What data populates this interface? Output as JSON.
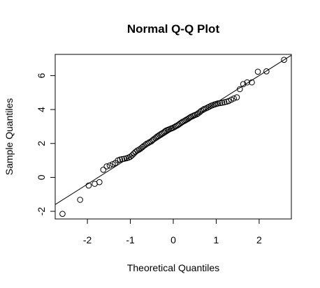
{
  "chart_data": {
    "type": "scatter",
    "title": "Normal Q-Q Plot",
    "xlabel": "Theoretical Quantiles",
    "ylabel": "Sample Quantiles",
    "xlim": [
      -2.75,
      2.75
    ],
    "ylim": [
      -2.45,
      7.25
    ],
    "x_ticks": [
      -2,
      -1,
      0,
      1,
      2
    ],
    "x_tick_labels": [
      "-2",
      "-1",
      "0",
      "1",
      "2"
    ],
    "y_ticks": [
      -2,
      0,
      2,
      4,
      6
    ],
    "y_tick_labels": [
      "-2",
      "0",
      "2",
      "4",
      "6"
    ],
    "grid": false,
    "reference_line": {
      "intercept": 2.8,
      "slope": 1.6
    },
    "points": [
      [
        -2.58,
        -2.15
      ],
      [
        -2.17,
        -1.32
      ],
      [
        -1.97,
        -0.48
      ],
      [
        -1.83,
        -0.38
      ],
      [
        -1.72,
        -0.28
      ],
      [
        -1.63,
        0.45
      ],
      [
        -1.55,
        0.65
      ],
      [
        -1.48,
        0.7
      ],
      [
        -1.41,
        0.78
      ],
      [
        -1.35,
        0.85
      ],
      [
        -1.29,
        1.0
      ],
      [
        -1.24,
        1.05
      ],
      [
        -1.19,
        1.08
      ],
      [
        -1.14,
        1.1
      ],
      [
        -1.09,
        1.13
      ],
      [
        -1.04,
        1.17
      ],
      [
        -1.0,
        1.22
      ],
      [
        -0.96,
        1.3
      ],
      [
        -0.92,
        1.4
      ],
      [
        -0.88,
        1.5
      ],
      [
        -0.84,
        1.58
      ],
      [
        -0.8,
        1.63
      ],
      [
        -0.76,
        1.7
      ],
      [
        -0.72,
        1.78
      ],
      [
        -0.69,
        1.85
      ],
      [
        -0.65,
        1.92
      ],
      [
        -0.62,
        1.98
      ],
      [
        -0.58,
        2.03
      ],
      [
        -0.55,
        2.08
      ],
      [
        -0.51,
        2.13
      ],
      [
        -0.48,
        2.2
      ],
      [
        -0.45,
        2.26
      ],
      [
        -0.41,
        2.33
      ],
      [
        -0.38,
        2.4
      ],
      [
        -0.35,
        2.45
      ],
      [
        -0.32,
        2.5
      ],
      [
        -0.29,
        2.55
      ],
      [
        -0.26,
        2.6
      ],
      [
        -0.22,
        2.66
      ],
      [
        -0.19,
        2.72
      ],
      [
        -0.16,
        2.77
      ],
      [
        -0.13,
        2.8
      ],
      [
        -0.1,
        2.83
      ],
      [
        -0.06,
        2.87
      ],
      [
        -0.03,
        2.9
      ],
      [
        0.0,
        2.93
      ],
      [
        0.03,
        2.97
      ],
      [
        0.06,
        3.02
      ],
      [
        0.1,
        3.07
      ],
      [
        0.13,
        3.12
      ],
      [
        0.16,
        3.18
      ],
      [
        0.19,
        3.23
      ],
      [
        0.22,
        3.28
      ],
      [
        0.26,
        3.33
      ],
      [
        0.29,
        3.38
      ],
      [
        0.32,
        3.42
      ],
      [
        0.35,
        3.46
      ],
      [
        0.38,
        3.52
      ],
      [
        0.41,
        3.57
      ],
      [
        0.45,
        3.61
      ],
      [
        0.48,
        3.65
      ],
      [
        0.51,
        3.68
      ],
      [
        0.55,
        3.72
      ],
      [
        0.58,
        3.78
      ],
      [
        0.62,
        3.85
      ],
      [
        0.65,
        3.92
      ],
      [
        0.69,
        3.98
      ],
      [
        0.72,
        4.03
      ],
      [
        0.76,
        4.07
      ],
      [
        0.8,
        4.12
      ],
      [
        0.84,
        4.17
      ],
      [
        0.88,
        4.22
      ],
      [
        0.92,
        4.26
      ],
      [
        0.96,
        4.3
      ],
      [
        1.0,
        4.33
      ],
      [
        1.04,
        4.36
      ],
      [
        1.09,
        4.38
      ],
      [
        1.14,
        4.4
      ],
      [
        1.19,
        4.43
      ],
      [
        1.24,
        4.46
      ],
      [
        1.29,
        4.5
      ],
      [
        1.35,
        4.58
      ],
      [
        1.41,
        4.65
      ],
      [
        1.48,
        4.72
      ],
      [
        1.55,
        5.2
      ],
      [
        1.63,
        5.5
      ],
      [
        1.72,
        5.6
      ],
      [
        1.83,
        5.6
      ],
      [
        1.97,
        6.23
      ],
      [
        2.17,
        6.25
      ],
      [
        2.58,
        6.93
      ]
    ]
  }
}
